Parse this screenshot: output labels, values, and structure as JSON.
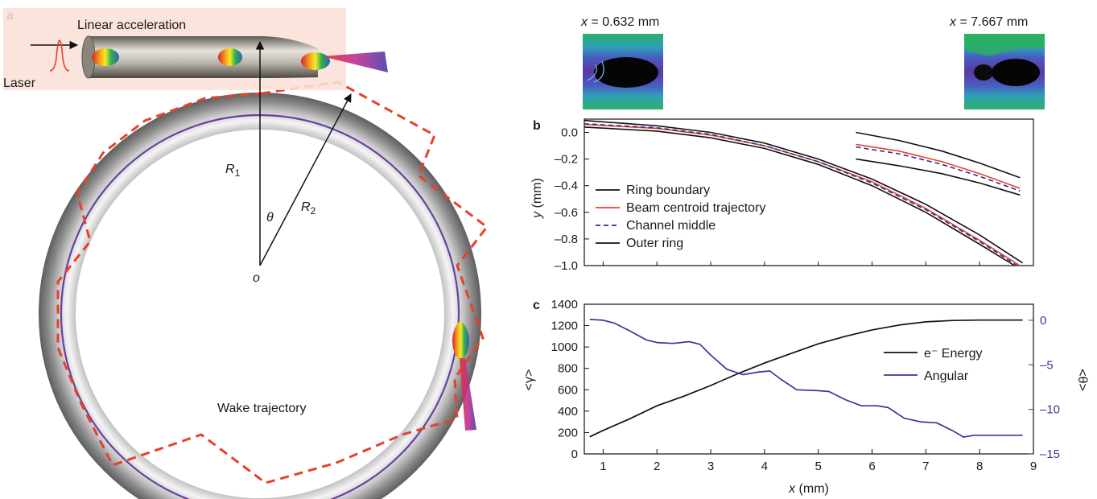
{
  "panel_a": {
    "panel_letter": "a",
    "linear_label": "Linear  acceleration",
    "laser_label": "Laser",
    "r1_main": "R",
    "r1_sub": "1",
    "r2_main": "R",
    "r2_sub": "2",
    "theta": "θ",
    "origin": "o",
    "wake_label": "Wake trajectory",
    "colors": {
      "dashed": "#e8402a",
      "purple": "#6a3fa0",
      "box": "#fbe0d6"
    }
  },
  "snapshots": {
    "left": {
      "var": "x",
      "value": " = 0.632 mm"
    },
    "right": {
      "var": "x",
      "value": " = 7.667 mm"
    }
  },
  "chart_data": [
    {
      "panel_letter": "b",
      "type": "line",
      "xlabel_var": "x",
      "xlabel_unit": " (mm)",
      "ylabel_var": "y",
      "ylabel_unit": " (mm)",
      "xlim": [
        0.65,
        9
      ],
      "ylim": [
        -1.0,
        0.1
      ],
      "yticks": [
        0.0,
        -0.2,
        -0.4,
        -0.6,
        -0.8,
        -1.0
      ],
      "ytick_labels": [
        "0.0",
        "–0.2",
        "–0.4",
        "–0.6",
        "–0.8",
        "–1.0"
      ],
      "legend": {
        "position": "lower-left",
        "entries": [
          "Ring boundary",
          "Beam centroid trajectory",
          "Channel middle",
          "Outer ring"
        ]
      },
      "series": [
        {
          "name": "Ring boundary",
          "color": "#111111",
          "dash": false,
          "x": [
            0.65,
            2,
            3,
            4,
            5,
            6,
            7,
            8,
            8.8
          ],
          "y": [
            0.09,
            0.05,
            0.0,
            -0.08,
            -0.2,
            -0.35,
            -0.54,
            -0.77,
            -0.98
          ]
        },
        {
          "name": "Ring boundary",
          "color": "#111111",
          "dash": false,
          "x": [
            0.65,
            2,
            3,
            4,
            5,
            6,
            7,
            8,
            8.65
          ],
          "y": [
            0.04,
            0.01,
            -0.04,
            -0.12,
            -0.24,
            -0.4,
            -0.6,
            -0.84,
            -1.0
          ]
        },
        {
          "name": "Beam centroid trajectory",
          "color": "#e8432c",
          "dash": false,
          "x": [
            0.65,
            2,
            3,
            4,
            5,
            6,
            7,
            8,
            8.75
          ],
          "y": [
            0.06,
            0.03,
            -0.02,
            -0.1,
            -0.22,
            -0.37,
            -0.57,
            -0.81,
            -1.0
          ]
        },
        {
          "name": "Channel middle",
          "color": "#2b2f96",
          "dash": true,
          "x": [
            0.65,
            2,
            3,
            4,
            5,
            6,
            7,
            8,
            8.7
          ],
          "y": [
            0.065,
            0.035,
            -0.015,
            -0.1,
            -0.22,
            -0.38,
            -0.58,
            -0.82,
            -1.0
          ]
        },
        {
          "name": "Outer ring",
          "color": "#111111",
          "dash": false,
          "x": [
            5.7,
            6.5,
            7.3,
            8.0,
            8.75
          ],
          "y": [
            -0.2,
            -0.25,
            -0.31,
            -0.38,
            -0.47
          ]
        },
        {
          "name": "Outer ring",
          "color": "#111111",
          "dash": false,
          "x": [
            5.7,
            6.5,
            7.3,
            8.0,
            8.75
          ],
          "y": [
            0.0,
            -0.06,
            -0.14,
            -0.23,
            -0.34
          ]
        },
        {
          "name": "Beam centroid trajectory",
          "color": "#e8432c",
          "dash": false,
          "x": [
            5.7,
            6.5,
            7.3,
            8.0,
            8.75
          ],
          "y": [
            -0.09,
            -0.14,
            -0.22,
            -0.31,
            -0.42
          ]
        },
        {
          "name": "Channel middle",
          "color": "#2b2f96",
          "dash": true,
          "x": [
            5.7,
            6.5,
            7.3,
            8.0,
            8.75
          ],
          "y": [
            -0.11,
            -0.16,
            -0.24,
            -0.33,
            -0.44
          ]
        }
      ]
    },
    {
      "panel_letter": "c",
      "type": "line",
      "xlabel_var": "x",
      "xlabel_unit": " (mm)",
      "xlim": [
        0.65,
        9
      ],
      "xticks": [
        1,
        2,
        3,
        4,
        5,
        6,
        7,
        8,
        9
      ],
      "ylabel_left": "<γ>",
      "ylabel_right": "<θ>",
      "ylim_left": [
        0,
        1400
      ],
      "ylim_right": [
        -15,
        1.8
      ],
      "yticks_left": [
        0,
        200,
        400,
        600,
        800,
        1000,
        1200,
        1400
      ],
      "yticks_right": [
        0,
        -5,
        -10,
        -15
      ],
      "ytick_right_labels": [
        "0",
        "–5",
        "–10",
        "–15"
      ],
      "legend": {
        "position": "right",
        "entries": [
          "e⁻ Energy",
          "Angular"
        ]
      },
      "series": [
        {
          "name": "e⁻ Energy",
          "axis": "left",
          "color": "#111111",
          "x": [
            0.75,
            1.0,
            1.5,
            2.0,
            2.5,
            3.0,
            3.5,
            4.0,
            4.5,
            5.0,
            5.5,
            6.0,
            6.5,
            7.0,
            7.5,
            8.0,
            8.5,
            8.8
          ],
          "y": [
            160,
            220,
            330,
            450,
            540,
            640,
            750,
            850,
            940,
            1030,
            1100,
            1160,
            1205,
            1235,
            1248,
            1252,
            1252,
            1252
          ]
        },
        {
          "name": "Angular",
          "axis": "right",
          "color": "#3a3594",
          "x": [
            0.75,
            1.0,
            1.2,
            1.5,
            1.8,
            2.0,
            2.3,
            2.6,
            2.8,
            3.0,
            3.3,
            3.6,
            3.9,
            4.1,
            4.3,
            4.6,
            5.0,
            5.2,
            5.5,
            5.8,
            6.1,
            6.3,
            6.6,
            6.9,
            7.2,
            7.5,
            7.7,
            7.9,
            8.2,
            8.5,
            8.8
          ],
          "y": [
            0.1,
            0.0,
            -0.3,
            -1.2,
            -2.2,
            -2.5,
            -2.6,
            -2.4,
            -2.7,
            -3.9,
            -5.5,
            -6.1,
            -5.8,
            -5.7,
            -6.6,
            -7.8,
            -7.9,
            -8.0,
            -8.9,
            -9.6,
            -9.6,
            -9.8,
            -11.0,
            -11.4,
            -11.5,
            -12.4,
            -13.1,
            -12.9,
            -12.9,
            -12.9,
            -12.9
          ]
        }
      ]
    }
  ]
}
